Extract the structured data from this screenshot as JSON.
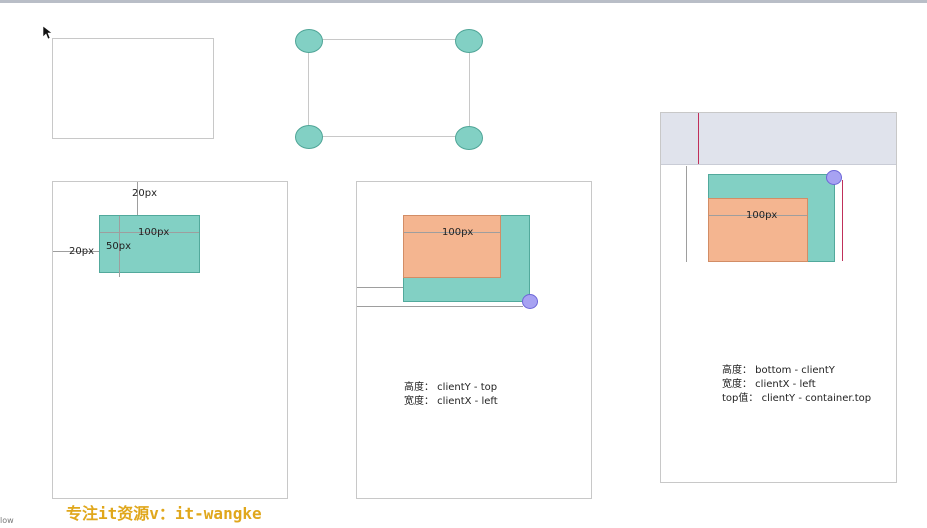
{
  "panel3": {
    "label_top": "20px",
    "label_left": "20px",
    "label_width": "100px",
    "label_height": "50px"
  },
  "panel4": {
    "label_width": "100px",
    "formula_height": "高度：  clientY - top",
    "formula_width": "宽度：  clientX - left"
  },
  "panel5": {
    "label_width": "100px",
    "formula_height": "高度：  bottom - clientY",
    "formula_width": "宽度：  clientX - left",
    "formula_top": "top值：  clientY - container.top"
  },
  "footer": {
    "watermark": "专注it资源v：it-wangke"
  },
  "edge_text": "low",
  "colors": {
    "teal": "#82d0c4",
    "orange": "#f4b590",
    "purple": "#a7a2f2",
    "red_line": "#c0305a",
    "header_bar": "#e0e3ec",
    "watermark": "#e0a71c"
  }
}
